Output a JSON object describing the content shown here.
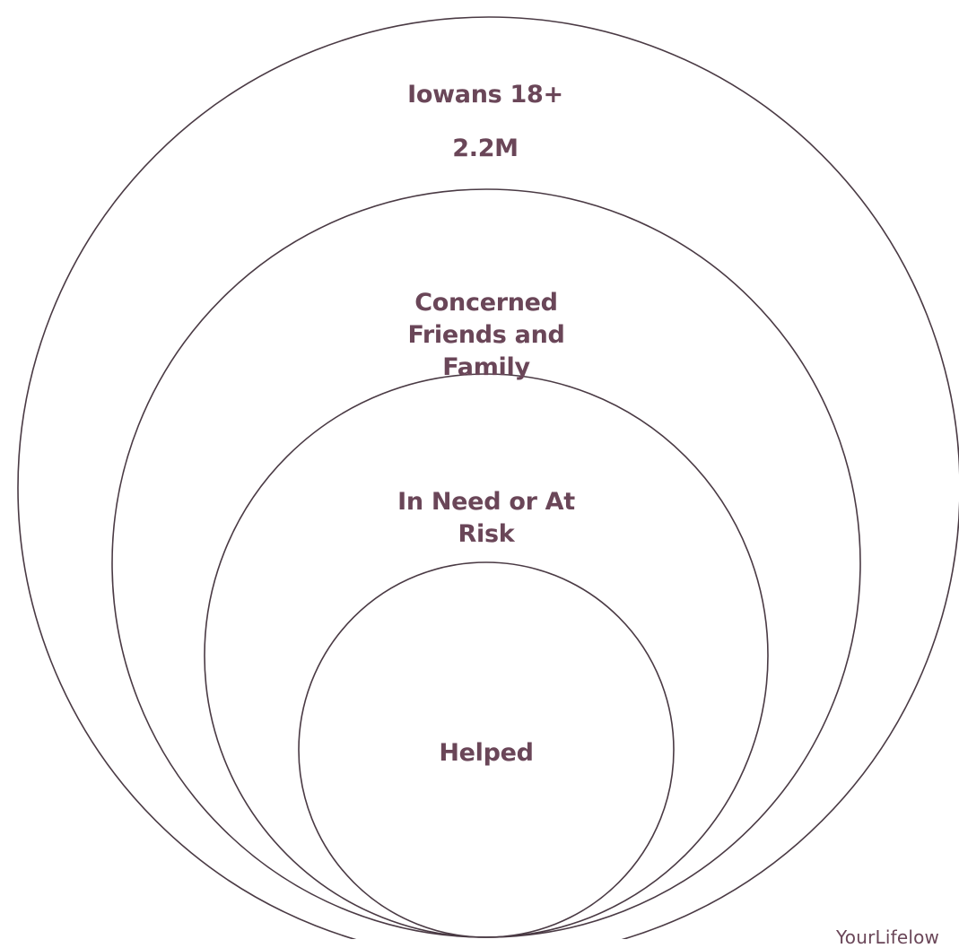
{
  "colors": {
    "text": "#6a4658",
    "ring": "#4a3a44",
    "background": "#ffffff"
  },
  "rings": [
    {
      "label": "Iowans 18+",
      "value": "2.2M"
    },
    {
      "label": "Concerned\nFriends and\nFamily"
    },
    {
      "label": "In Need or At\nRisk"
    },
    {
      "label": "Helped"
    }
  ],
  "watermark": "YourLifelow"
}
